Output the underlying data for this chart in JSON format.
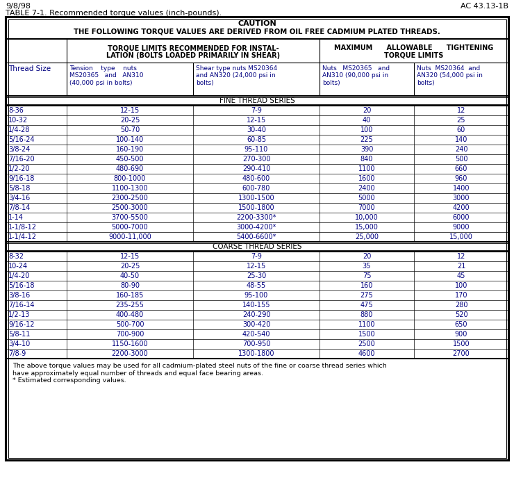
{
  "header_date": "9/8/98",
  "header_doc": "AC 43.13-1B",
  "table_title": "TABLE 7-1. Recommended torque values (inch-pounds).",
  "caution_line1": "CAUTION",
  "caution_line2": "THE FOLLOWING TORQUE VALUES ARE DERIVED FROM OIL FREE CADMIUM PLATED THREADS.",
  "col_header_2a": "TORQUE LIMITS RECOMMENDED FOR INSTAL-",
  "col_header_2b": "LATION (BOLTS LOADED PRIMARILY IN SHEAR)",
  "col_header_3a": "MAXIMUM      ALLOWABLE      TIGHTENING",
  "col_header_3b": "TORQUE LIMITS",
  "sub_col1": "Thread Size",
  "sub_col2": "Tension    type    nuts\nMS20365   and   AN310\n(40,000 psi in bolts)",
  "sub_col3": "Shear type nuts MS20364\nand AN320 (24,000 psi in\nbolts)",
  "sub_col4": "Nuts   MS20365   and\nAN310 (90,000 psi in\nbolts)",
  "sub_col5": "Nuts  MS20364  and\nAN320 (54,000 psi in\nbolts)",
  "fine_thread_label": "FINE THREAD SERIES",
  "fine_thread_data": [
    [
      "8-36",
      "12-15",
      "7-9",
      "20",
      "12"
    ],
    [
      "10-32",
      "20-25",
      "12-15",
      "40",
      "25"
    ],
    [
      "1/4-28",
      "50-70",
      "30-40",
      "100",
      "60"
    ],
    [
      "5/16-24",
      "100-140",
      "60-85",
      "225",
      "140"
    ],
    [
      "3/8-24",
      "160-190",
      "95-110",
      "390",
      "240"
    ],
    [
      "7/16-20",
      "450-500",
      "270-300",
      "840",
      "500"
    ],
    [
      "1/2-20",
      "480-690",
      "290-410",
      "1100",
      "660"
    ],
    [
      "9/16-18",
      "800-1000",
      "480-600",
      "1600",
      "960"
    ],
    [
      "5/8-18",
      "1100-1300",
      "600-780",
      "2400",
      "1400"
    ],
    [
      "3/4-16",
      "2300-2500",
      "1300-1500",
      "5000",
      "3000"
    ],
    [
      "7/8-14",
      "2500-3000",
      "1500-1800",
      "7000",
      "4200"
    ],
    [
      "1-14",
      "3700-5500",
      "2200-3300*",
      "10,000",
      "6000"
    ],
    [
      "1-1/8-12",
      "5000-7000",
      "3000-4200*",
      "15,000",
      "9000"
    ],
    [
      "1-1/4-12",
      "9000-11,000",
      "5400-6600*",
      "25,000",
      "15,000"
    ]
  ],
  "coarse_thread_label": "COARSE THREAD SERIES",
  "coarse_thread_data": [
    [
      "8-32",
      "12-15",
      "7-9",
      "20",
      "12"
    ],
    [
      "10-24",
      "20-25",
      "12-15",
      "35",
      "21"
    ],
    [
      "1/4-20",
      "40-50",
      "25-30",
      "75",
      "45"
    ],
    [
      "5/16-18",
      "80-90",
      "48-55",
      "160",
      "100"
    ],
    [
      "3/8-16",
      "160-185",
      "95-100",
      "275",
      "170"
    ],
    [
      "7/16-14",
      "235-255",
      "140-155",
      "475",
      "280"
    ],
    [
      "1/2-13",
      "400-480",
      "240-290",
      "880",
      "520"
    ],
    [
      "9/16-12",
      "500-700",
      "300-420",
      "1100",
      "650"
    ],
    [
      "5/8-11",
      "700-900",
      "420-540",
      "1500",
      "900"
    ],
    [
      "3/4-10",
      "1150-1600",
      "700-950",
      "2500",
      "1500"
    ],
    [
      "7/8-9",
      "2200-3000",
      "1300-1800",
      "4600",
      "2700"
    ]
  ],
  "footnote1": "The above torque values may be used for all cadmium-plated steel nuts of the fine or coarse thread series which",
  "footnote2": "have approximately equal number of threads and equal face bearing areas.",
  "footnote3": "* Estimated corresponding values.",
  "bg_color": "#ffffff",
  "navy": "#000080",
  "black": "#000000"
}
